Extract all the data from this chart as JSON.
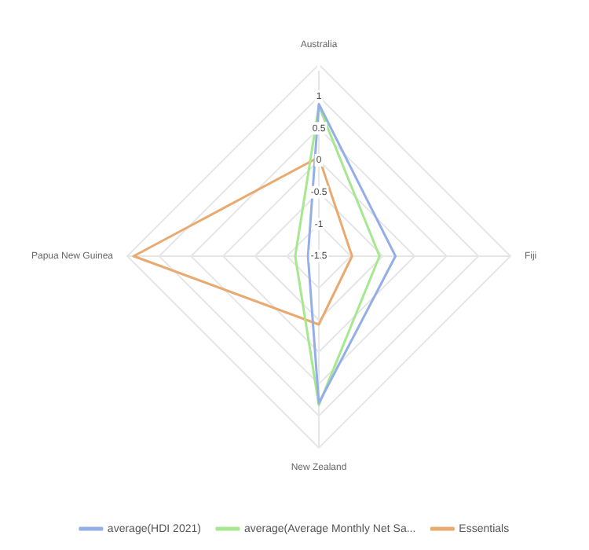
{
  "chart_data": {
    "type": "radar",
    "categories": [
      "Australia",
      "Fiji",
      "New Zealand",
      "Papua New Guinea"
    ],
    "series": [
      {
        "name": "average(HDI 2021)",
        "color": "#94aee8",
        "values": [
          0.88,
          -0.3,
          0.8,
          -1.33
        ]
      },
      {
        "name": "average(Average Monthly Net Sa...",
        "color": "#a6e88f",
        "values": [
          0.85,
          -0.55,
          0.83,
          -1.13
        ]
      },
      {
        "name": "Essentials",
        "color": "#e8aa70",
        "values": [
          0.05,
          -0.98,
          -0.43,
          1.4
        ]
      }
    ],
    "ylim": [
      -1.5,
      1.5
    ],
    "yticks": [
      -1.5,
      -1,
      -0.5,
      0,
      0.5,
      1
    ],
    "grid": true,
    "legend": "bottom",
    "marker": "none",
    "line_style": "solid"
  }
}
